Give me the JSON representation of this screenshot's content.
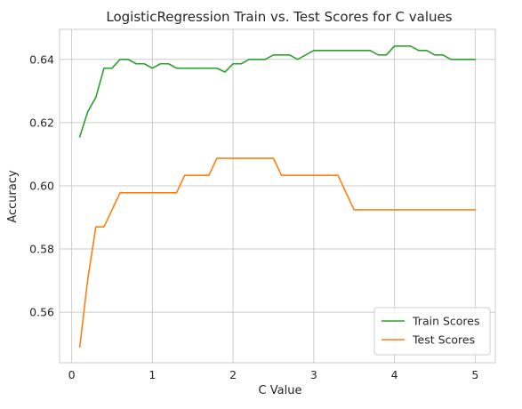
{
  "chart_data": {
    "type": "line",
    "title": "LogisticRegression Train vs. Test Scores for C values",
    "xlabel": "C Value",
    "ylabel": "Accuracy",
    "xlim": [
      -0.15,
      5.25
    ],
    "ylim": [
      0.544,
      0.6495
    ],
    "xticks": [
      0,
      1,
      2,
      3,
      4,
      5
    ],
    "xtick_labels": [
      "0",
      "1",
      "2",
      "3",
      "4",
      "5"
    ],
    "yticks": [
      0.56,
      0.58,
      0.6,
      0.62,
      0.64
    ],
    "ytick_labels": [
      "0.56",
      "0.58",
      "0.60",
      "0.62",
      "0.64"
    ],
    "grid": true,
    "legend_position": "lower-right",
    "x": [
      0.1,
      0.2,
      0.3,
      0.4,
      0.5,
      0.6,
      0.7,
      0.8,
      0.9,
      1.0,
      1.1,
      1.2,
      1.3,
      1.4,
      1.5,
      1.6,
      1.7,
      1.8,
      1.9,
      2.0,
      2.1,
      2.2,
      2.3,
      2.4,
      2.5,
      2.6,
      2.7,
      2.8,
      2.9,
      3.0,
      3.1,
      3.2,
      3.3,
      3.4,
      3.5,
      3.6,
      3.7,
      3.8,
      3.9,
      4.0,
      4.1,
      4.2,
      4.3,
      4.4,
      4.5,
      4.6,
      4.7,
      4.8,
      4.9,
      5.0
    ],
    "series": [
      {
        "name": "Train Scores",
        "color": "#2ca02c",
        "values": [
          0.6155,
          0.6235,
          0.628,
          0.6372,
          0.6372,
          0.64,
          0.64,
          0.6386,
          0.6386,
          0.6372,
          0.6386,
          0.6386,
          0.6372,
          0.6372,
          0.6372,
          0.6372,
          0.6372,
          0.6372,
          0.636,
          0.6386,
          0.6386,
          0.64,
          0.64,
          0.64,
          0.6414,
          0.6414,
          0.6414,
          0.64,
          0.6414,
          0.6428,
          0.6428,
          0.6428,
          0.6428,
          0.6428,
          0.6428,
          0.6428,
          0.6428,
          0.6414,
          0.6414,
          0.6442,
          0.6442,
          0.6442,
          0.6428,
          0.6428,
          0.6414,
          0.6414,
          0.64,
          0.64,
          0.64,
          0.64
        ]
      },
      {
        "name": "Test Scores",
        "color": "#ff7f0e",
        "values": [
          0.549,
          0.5706,
          0.587,
          0.587,
          0.5924,
          0.5978,
          0.5978,
          0.5978,
          0.5978,
          0.5978,
          0.5978,
          0.5978,
          0.5978,
          0.6033,
          0.6033,
          0.6033,
          0.6033,
          0.6087,
          0.6087,
          0.6087,
          0.6087,
          0.6087,
          0.6087,
          0.6087,
          0.6087,
          0.6033,
          0.6033,
          0.6033,
          0.6033,
          0.6033,
          0.6033,
          0.6033,
          0.6033,
          0.5978,
          0.5924,
          0.5924,
          0.5924,
          0.5924,
          0.5924,
          0.5924,
          0.5924,
          0.5924,
          0.5924,
          0.5924,
          0.5924,
          0.5924,
          0.5924,
          0.5924,
          0.5924,
          0.5924
        ]
      }
    ]
  }
}
